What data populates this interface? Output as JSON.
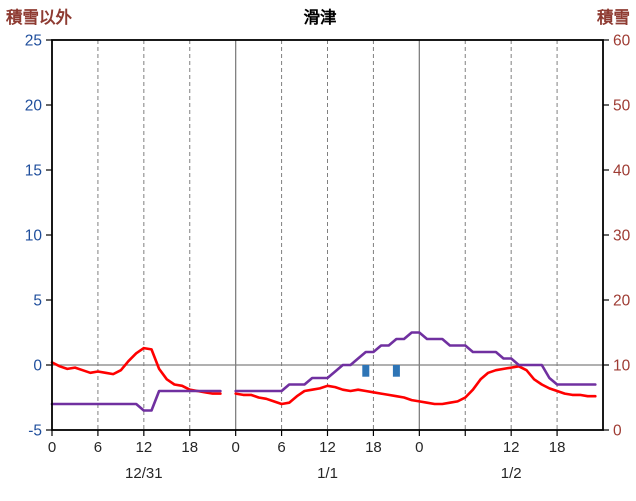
{
  "chart_data": {
    "type": "line",
    "title": "滑津",
    "left_axis": {
      "label": "積雪以外",
      "min": -5,
      "max": 25,
      "ticks": [
        25,
        20,
        15,
        10,
        5,
        0,
        -5
      ]
    },
    "right_axis": {
      "label": "積雪",
      "min": 0,
      "max": 60,
      "ticks": [
        60,
        50,
        40,
        30,
        20,
        10,
        0
      ]
    },
    "x_axis": {
      "total_hours": 72,
      "tick_hours": [
        0,
        6,
        12,
        18,
        24,
        30,
        36,
        42,
        48,
        54,
        60,
        66
      ],
      "tick_labels": [
        "0",
        "6",
        "12",
        "18",
        "0",
        "6",
        "12",
        "18",
        "0",
        "",
        "12",
        "18"
      ],
      "day_boundaries": [
        24,
        48
      ],
      "day_labels": [
        {
          "label": "12/31",
          "center_hour": 12
        },
        {
          "label": "1/1",
          "center_hour": 36
        },
        {
          "label": "1/2",
          "center_hour": 60
        }
      ]
    },
    "zero_line_left_value": 0,
    "series": [
      {
        "name": "red-line",
        "axis": "left",
        "color": "#FF0000",
        "values": [
          0.2,
          -0.1,
          -0.3,
          -0.2,
          -0.4,
          -0.6,
          -0.5,
          -0.6,
          -0.7,
          -0.4,
          0.3,
          0.9,
          1.3,
          1.2,
          -0.3,
          -1.1,
          -1.5,
          -1.6,
          -1.9,
          -2.0,
          -2.1,
          -2.2,
          -2.2,
          null,
          -2.2,
          -2.3,
          -2.3,
          -2.5,
          -2.6,
          -2.8,
          -3.0,
          -2.9,
          -2.4,
          -2.0,
          -1.9,
          -1.8,
          -1.6,
          -1.7,
          -1.9,
          -2.0,
          -1.9,
          -2.0,
          -2.1,
          -2.2,
          -2.3,
          -2.4,
          -2.5,
          -2.7,
          -2.8,
          -2.9,
          -3.0,
          -3.0,
          -2.9,
          -2.8,
          -2.5,
          -1.9,
          -1.1,
          -0.6,
          -0.4,
          -0.3,
          -0.2,
          -0.1,
          -0.4,
          -1.1,
          -1.5,
          -1.8,
          -2.0,
          -2.2,
          -2.3,
          -2.3,
          -2.4,
          -2.4
        ]
      },
      {
        "name": "purple-line",
        "axis": "right",
        "color": "#7030A0",
        "values": [
          4,
          4,
          4,
          4,
          4,
          4,
          4,
          4,
          4,
          4,
          4,
          4,
          3,
          3,
          6,
          6,
          6,
          6,
          6,
          6,
          6,
          6,
          6,
          null,
          6,
          6,
          6,
          6,
          6,
          6,
          6,
          7,
          7,
          7,
          8,
          8,
          8,
          9,
          10,
          10,
          11,
          12,
          12,
          13,
          13,
          14,
          14,
          15,
          15,
          14,
          14,
          14,
          13,
          13,
          13,
          12,
          12,
          12,
          12,
          11,
          11,
          10,
          10,
          10,
          10,
          8,
          7,
          7,
          7,
          7,
          7,
          7
        ]
      }
    ],
    "bars": {
      "name": "blue-bars",
      "color": "#2E75B6",
      "items": [
        {
          "hour": 41,
          "from_left_value": 0,
          "to_left_value": -0.9
        },
        {
          "hour": 45,
          "from_left_value": 0,
          "to_left_value": -0.9
        }
      ]
    },
    "colors": {
      "grid": "#808080",
      "frame": "#000000",
      "left_ticks": "#1F4E9C",
      "right_ticks": "#9E3B33",
      "side_titles": "#8E3B32",
      "title": "#000000",
      "bottom_ticks": "#262626"
    }
  }
}
